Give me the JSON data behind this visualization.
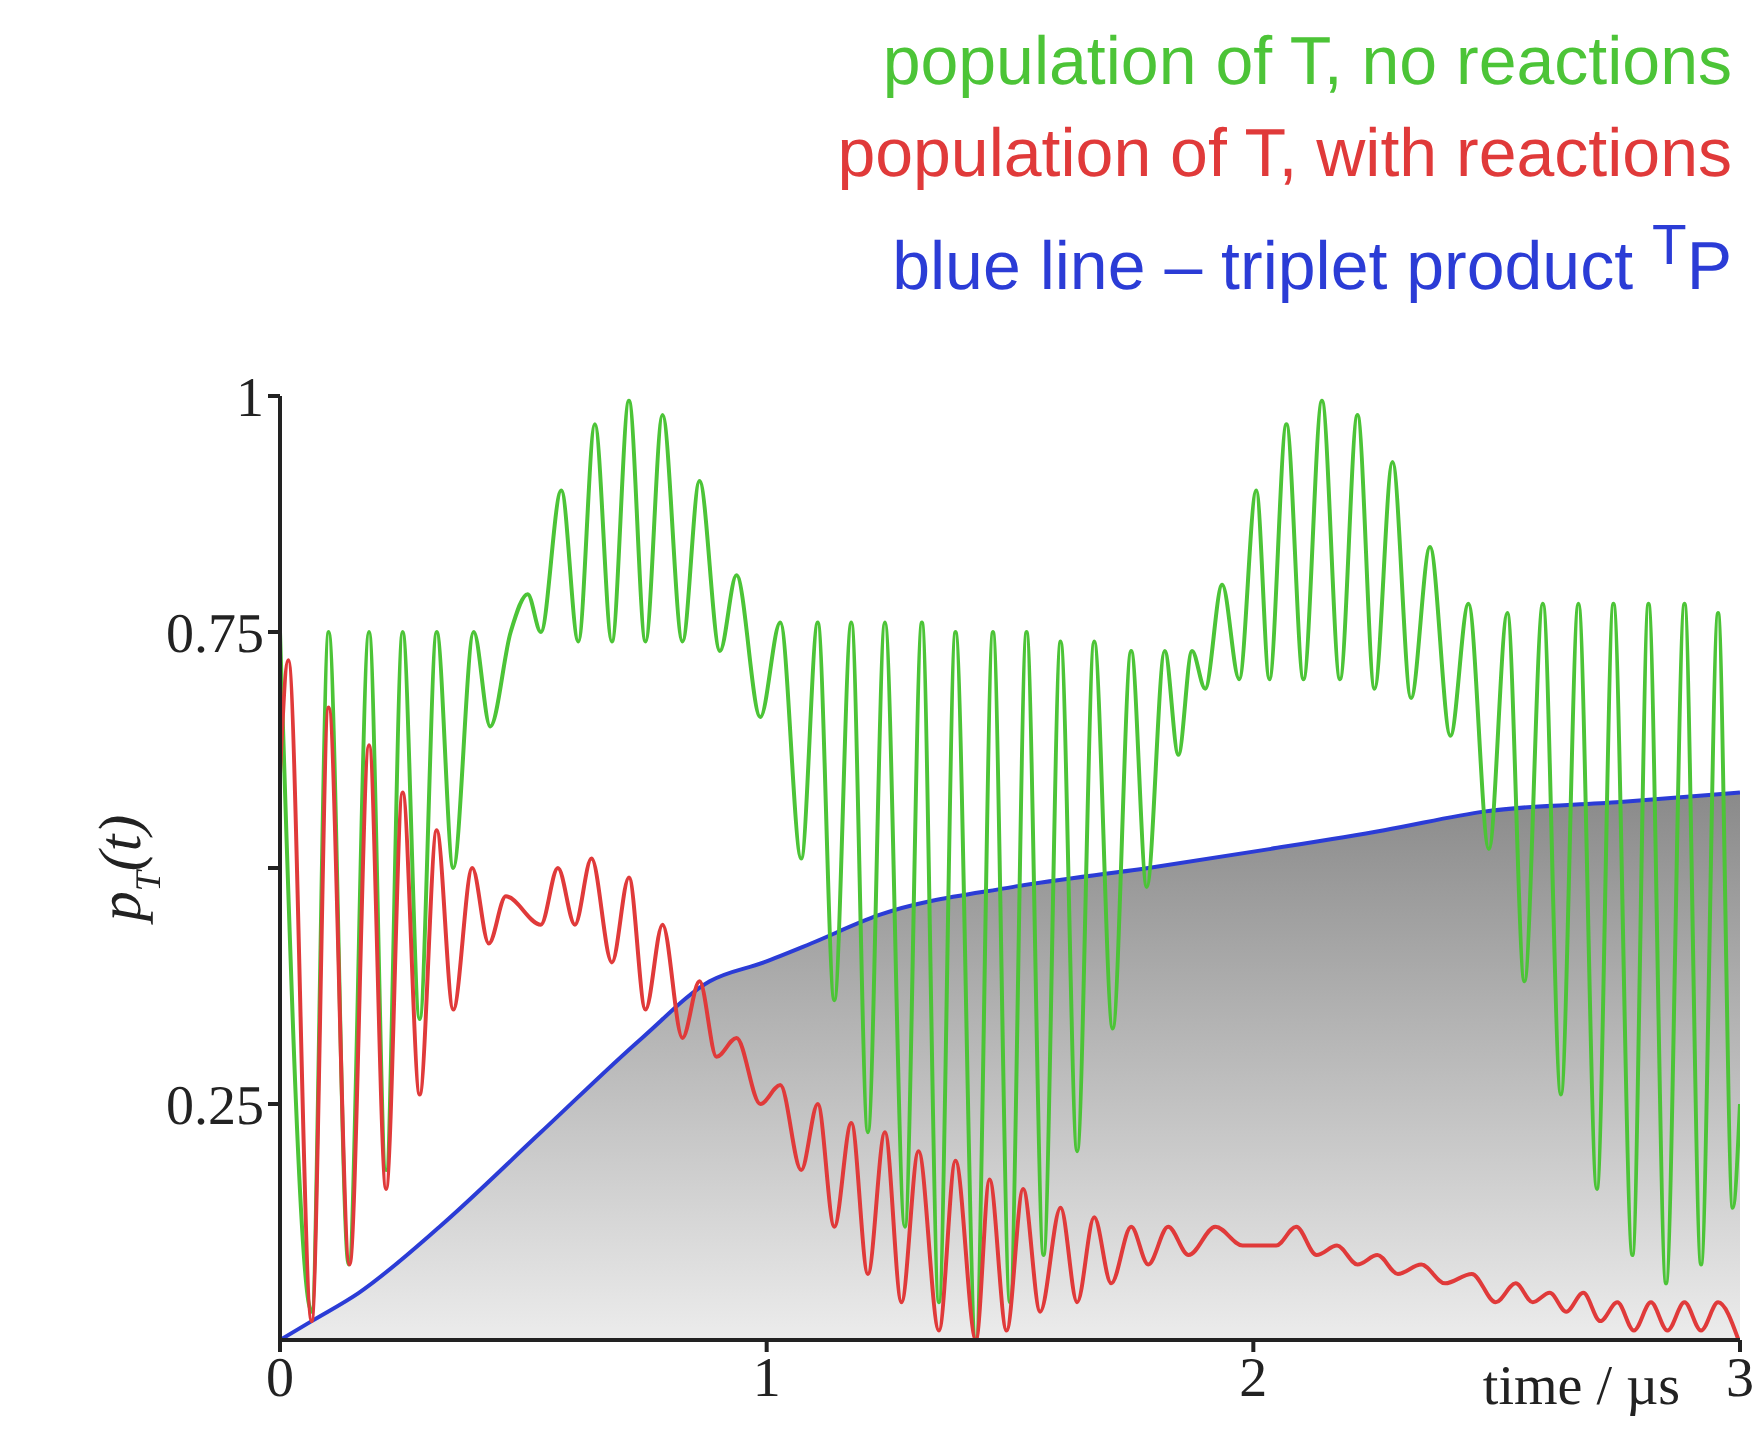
{
  "chart_data": {
    "type": "line",
    "xlabel": "time / µs",
    "ylabel": "p$_{T}$(t)",
    "xlim": [
      0,
      3
    ],
    "xticks": [
      0,
      1,
      2,
      3
    ],
    "ylim": [
      0,
      1
    ],
    "yticks": [
      0.25,
      {
        "value": 0.5,
        "label": null
      },
      0.75,
      1
    ],
    "grid": false,
    "legend": "top right",
    "marker": "none",
    "line_style": "solid",
    "series": [
      {
        "name": "population of T, no reactions",
        "color": "#4cc437",
        "x": [
          0,
          0.065,
          0.1,
          0.141,
          0.183,
          0.218,
          0.252,
          0.287,
          0.322,
          0.356,
          0.398,
          0.432,
          0.474,
          0.509,
          0.536,
          0.578,
          0.613,
          0.647,
          0.682,
          0.717,
          0.751,
          0.786,
          0.827,
          0.862,
          0.904,
          0.938,
          0.987,
          1.028,
          1.071,
          1.105,
          1.139,
          1.174,
          1.208,
          1.243,
          1.284,
          1.319,
          1.354,
          1.388,
          1.43,
          1.465,
          1.5,
          1.534,
          1.569,
          1.604,
          1.638,
          1.673,
          1.711,
          1.749,
          1.781,
          1.818,
          1.846,
          1.874,
          1.901,
          1.936,
          1.971,
          2.006,
          2.033,
          2.068,
          2.103,
          2.141,
          2.178,
          2.214,
          2.249,
          2.286,
          2.324,
          2.363,
          2.405,
          2.442,
          2.484,
          2.522,
          2.557,
          2.595,
          2.632,
          2.668,
          2.706,
          2.74,
          2.779,
          2.812,
          2.848,
          2.886,
          2.92,
          2.955,
          2.985,
          3.0
        ],
        "values": [
          0.75,
          0.03,
          0.75,
          0.08,
          0.75,
          0.18,
          0.75,
          0.34,
          0.75,
          0.5,
          0.75,
          0.65,
          0.75,
          0.79,
          0.75,
          0.9,
          0.74,
          0.97,
          0.74,
          0.995,
          0.74,
          0.98,
          0.74,
          0.91,
          0.73,
          0.81,
          0.66,
          0.76,
          0.51,
          0.76,
          0.36,
          0.76,
          0.22,
          0.76,
          0.12,
          0.76,
          0.04,
          0.75,
          0.0,
          0.75,
          0.04,
          0.75,
          0.09,
          0.74,
          0.2,
          0.74,
          0.33,
          0.73,
          0.48,
          0.73,
          0.62,
          0.73,
          0.69,
          0.8,
          0.7,
          0.9,
          0.7,
          0.97,
          0.7,
          0.995,
          0.7,
          0.98,
          0.69,
          0.93,
          0.68,
          0.84,
          0.64,
          0.78,
          0.52,
          0.77,
          0.38,
          0.78,
          0.26,
          0.78,
          0.16,
          0.78,
          0.09,
          0.78,
          0.06,
          0.78,
          0.08,
          0.77,
          0.14,
          0.25
        ]
      },
      {
        "name": "population of T, with reactions",
        "color": "#e03a3a",
        "x": [
          0,
          0.017,
          0.065,
          0.1,
          0.143,
          0.183,
          0.218,
          0.252,
          0.287,
          0.322,
          0.356,
          0.395,
          0.429,
          0.464,
          0.536,
          0.571,
          0.606,
          0.64,
          0.682,
          0.717,
          0.751,
          0.786,
          0.827,
          0.862,
          0.897,
          0.938,
          0.987,
          1.028,
          1.071,
          1.105,
          1.139,
          1.174,
          1.208,
          1.243,
          1.277,
          1.312,
          1.354,
          1.388,
          1.43,
          1.458,
          1.493,
          1.527,
          1.562,
          1.604,
          1.638,
          1.673,
          1.708,
          1.749,
          1.784,
          1.825,
          1.867,
          1.922,
          1.978,
          2.047,
          2.088,
          2.13,
          2.172,
          2.214,
          2.255,
          2.297,
          2.345,
          2.394,
          2.449,
          2.498,
          2.539,
          2.574,
          2.609,
          2.643,
          2.678,
          2.713,
          2.748,
          2.782,
          2.817,
          2.851,
          2.886,
          2.92,
          2.955,
          2.997
        ],
        "values": [
          0.6,
          0.72,
          0.02,
          0.67,
          0.08,
          0.63,
          0.16,
          0.58,
          0.26,
          0.54,
          0.35,
          0.5,
          0.42,
          0.47,
          0.44,
          0.5,
          0.44,
          0.51,
          0.4,
          0.49,
          0.35,
          0.44,
          0.32,
          0.38,
          0.3,
          0.32,
          0.25,
          0.27,
          0.18,
          0.25,
          0.12,
          0.23,
          0.07,
          0.22,
          0.04,
          0.2,
          0.01,
          0.19,
          0.0,
          0.17,
          0.01,
          0.16,
          0.03,
          0.14,
          0.04,
          0.13,
          0.06,
          0.12,
          0.08,
          0.12,
          0.09,
          0.12,
          0.1,
          0.1,
          0.12,
          0.09,
          0.1,
          0.08,
          0.09,
          0.07,
          0.08,
          0.06,
          0.07,
          0.04,
          0.06,
          0.04,
          0.05,
          0.03,
          0.05,
          0.02,
          0.04,
          0.01,
          0.04,
          0.01,
          0.04,
          0.01,
          0.04,
          0.0
        ]
      },
      {
        "name": "blue line – triplet product $^{T}$P",
        "color": "#2b3cd6",
        "type": "area",
        "x": [
          0,
          0.065,
          0.162,
          0.328,
          0.536,
          0.744,
          0.883,
          0.994,
          1.091,
          1.23,
          1.507,
          1.784,
          2.033,
          2.269,
          2.477,
          2.754,
          3.0
        ],
        "values": [
          0,
          0.02,
          0.05,
          0.12,
          0.22,
          0.32,
          0.38,
          0.4,
          0.42,
          0.45,
          0.48,
          0.5,
          0.52,
          0.54,
          0.56,
          0.57,
          0.58
        ]
      }
    ]
  }
}
